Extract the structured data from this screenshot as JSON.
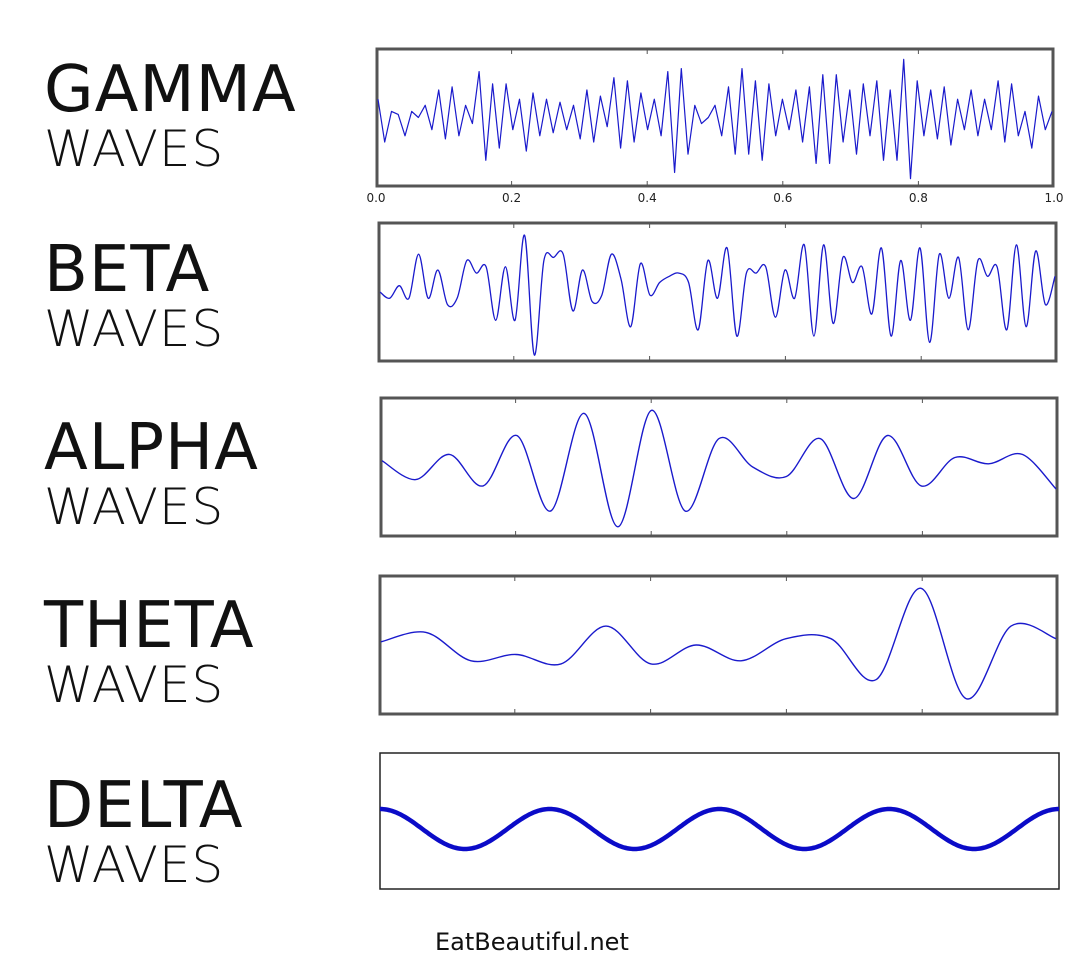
{
  "labels": [
    {
      "line1": "GAMMA",
      "line2": "WAVES"
    },
    {
      "line1": "BETA",
      "line2": "WAVES"
    },
    {
      "line1": "ALPHA",
      "line2": "WAVES"
    },
    {
      "line1": "THETA",
      "line2": "WAVES"
    },
    {
      "line1": "DELTA",
      "line2": "WAVES"
    }
  ],
  "footer": "EatBeautiful.net",
  "colors": {
    "line": "#1a1acc",
    "frame": "#555555",
    "delta_line": "#0b0bc8"
  },
  "gamma_ticks": [
    "0.0",
    "0.2",
    "0.4",
    "0.6",
    "0.8",
    "1.0"
  ],
  "chart_data": [
    {
      "type": "line",
      "title": "GAMMA WAVES",
      "xlabel": "",
      "ylabel": "",
      "xlim": [
        0.0,
        1.0
      ],
      "xticks": [
        0.0,
        0.2,
        0.4,
        0.6,
        0.8,
        1.0
      ],
      "ylim": [
        -1,
        1
      ],
      "grid": false,
      "description": "high-frequency irregular oscillation (~70 cycles)",
      "x": [
        0,
        0.01,
        0.02,
        0.03,
        0.04,
        0.05,
        0.06,
        0.07,
        0.08,
        0.09,
        0.1,
        0.11,
        0.12,
        0.13,
        0.14,
        0.15,
        0.16,
        0.17,
        0.18,
        0.19,
        0.2,
        0.21,
        0.22,
        0.23,
        0.24,
        0.25,
        0.26,
        0.27,
        0.28,
        0.29,
        0.3,
        0.31,
        0.32,
        0.33,
        0.34,
        0.35,
        0.36,
        0.37,
        0.38,
        0.39,
        0.4,
        0.41,
        0.42,
        0.43,
        0.44,
        0.45,
        0.46,
        0.47,
        0.48,
        0.49,
        0.5,
        0.51,
        0.52,
        0.53,
        0.54,
        0.55,
        0.56,
        0.57,
        0.58,
        0.59,
        0.6,
        0.61,
        0.62,
        0.63,
        0.64,
        0.65,
        0.66,
        0.67,
        0.68,
        0.69,
        0.7,
        0.71,
        0.72,
        0.73,
        0.74,
        0.75,
        0.76,
        0.77,
        0.78,
        0.79,
        0.8,
        0.81,
        0.82,
        0.83,
        0.84,
        0.85,
        0.86,
        0.87,
        0.88,
        0.89,
        0.9,
        0.91,
        0.92,
        0.93,
        0.94,
        0.95,
        0.96,
        0.97,
        0.98,
        0.99,
        1.0
      ],
      "values": [
        0.3,
        -0.4,
        0.1,
        0.05,
        -0.3,
        0.1,
        0.0,
        0.2,
        -0.2,
        0.45,
        -0.35,
        0.5,
        -0.3,
        0.2,
        -0.1,
        0.75,
        -0.7,
        0.55,
        -0.5,
        0.55,
        -0.2,
        0.3,
        -0.55,
        0.4,
        -0.3,
        0.3,
        -0.25,
        0.25,
        -0.2,
        0.2,
        -0.35,
        0.45,
        -0.4,
        0.35,
        -0.15,
        0.65,
        -0.5,
        0.6,
        -0.4,
        0.4,
        -0.2,
        0.3,
        -0.3,
        0.75,
        -0.9,
        0.8,
        -0.6,
        0.2,
        -0.1,
        0.0,
        0.2,
        -0.3,
        0.5,
        -0.6,
        0.8,
        -0.6,
        0.6,
        -0.7,
        0.55,
        -0.3,
        0.3,
        -0.2,
        0.45,
        -0.4,
        0.5,
        -0.75,
        0.7,
        -0.75,
        0.7,
        -0.4,
        0.45,
        -0.6,
        0.55,
        -0.3,
        0.6,
        -0.7,
        0.45,
        -0.7,
        0.95,
        -1.0,
        0.6,
        -0.3,
        0.45,
        -0.35,
        0.5,
        -0.45,
        0.3,
        -0.2,
        0.45,
        -0.3,
        0.3,
        -0.2,
        0.6,
        -0.4,
        0.55,
        -0.3,
        0.1,
        -0.5,
        0.35,
        -0.2,
        0.1
      ]
    },
    {
      "type": "line",
      "title": "BETA WAVES",
      "xlabel": "",
      "ylabel": "",
      "xlim": [
        0.0,
        1.0
      ],
      "ylim": [
        -1,
        1
      ],
      "grid": false,
      "description": "medium-high frequency oscillation (~45 cycles)",
      "values": [
        0.0,
        -0.1,
        0.1,
        -0.1,
        0.6,
        -0.1,
        0.35,
        -0.2,
        -0.1,
        0.5,
        0.3,
        0.4,
        -0.45,
        0.4,
        -0.45,
        0.9,
        -1.0,
        0.5,
        0.55,
        0.6,
        -0.3,
        0.35,
        -0.15,
        -0.05,
        0.6,
        0.2,
        -0.55,
        0.45,
        -0.05,
        0.15,
        0.25,
        0.3,
        0.15,
        -0.6,
        0.5,
        -0.1,
        0.7,
        -0.7,
        0.3,
        0.3,
        0.4,
        -0.4,
        0.35,
        -0.1,
        0.75,
        -0.7,
        0.75,
        -0.5,
        0.55,
        0.15,
        0.4,
        -0.35,
        0.7,
        -0.7,
        0.5,
        -0.45,
        0.7,
        -0.8,
        0.6,
        -0.1,
        0.55,
        -0.6,
        0.5,
        0.25,
        0.4,
        -0.6,
        0.75,
        -0.55,
        0.65,
        -0.2,
        0.25
      ]
    },
    {
      "type": "line",
      "title": "ALPHA WAVES",
      "xlabel": "",
      "ylabel": "",
      "xlim": [
        0.0,
        1.0
      ],
      "ylim": [
        -1,
        1
      ],
      "grid": false,
      "description": "medium frequency wave packet, ~10 cycles, amplitude peaking near x=0.3",
      "values": [
        0.1,
        -0.2,
        0.2,
        -0.3,
        0.5,
        -0.7,
        0.85,
        -0.95,
        0.9,
        -0.7,
        0.45,
        0.0,
        -0.15,
        0.45,
        -0.5,
        0.5,
        -0.3,
        0.15,
        0.05,
        0.2,
        -0.35
      ]
    },
    {
      "type": "line",
      "title": "THETA WAVES",
      "xlabel": "",
      "ylabel": "",
      "xlim": [
        0.0,
        1.0
      ],
      "ylim": [
        -1,
        1
      ],
      "grid": false,
      "description": "low frequency smooth wave, large swing near x=0.8",
      "values": [
        0.05,
        0.2,
        -0.25,
        -0.15,
        -0.3,
        0.3,
        -0.3,
        0.0,
        -0.25,
        0.1,
        0.1,
        -0.55,
        0.9,
        -0.85,
        0.3,
        0.1
      ]
    },
    {
      "type": "line",
      "title": "DELTA WAVES",
      "xlabel": "",
      "ylabel": "",
      "xlim": [
        0.0,
        1.0
      ],
      "ylim": [
        -1,
        1
      ],
      "grid": false,
      "description": "pure low-frequency sinusoid, 4 periods, thick line",
      "cycles": 4,
      "amplitude": 0.3
    }
  ]
}
